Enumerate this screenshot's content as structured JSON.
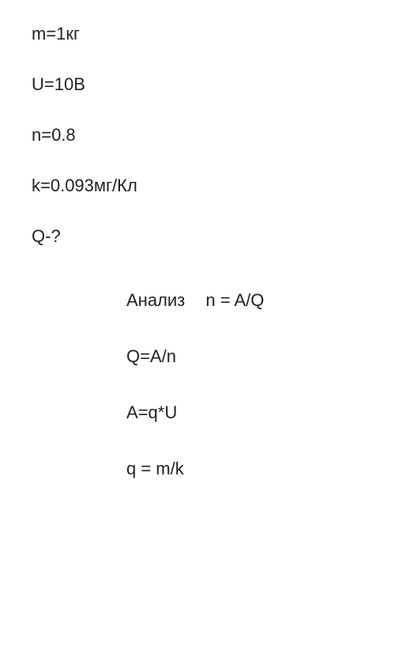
{
  "given": {
    "line1": "m=1кг",
    "line2": "U=10В",
    "line3": "n=0.8",
    "line4": "k=0.093мг/Кл",
    "line5": "Q-?"
  },
  "analysis": {
    "label": "Анализ",
    "eq1": "n = A/Q",
    "eq2": "Q=A/n",
    "eq3": "A=q*U",
    "eq4": "q = m/k"
  },
  "style": {
    "fontsize": 22,
    "text_color": "#222222",
    "background_color": "#ffffff",
    "given_gap": 38,
    "analysis_gap": 45,
    "analysis_indent": 120
  }
}
